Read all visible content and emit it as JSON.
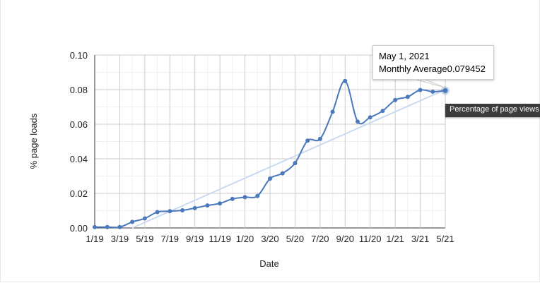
{
  "chart_data": {
    "type": "line",
    "title": "",
    "xlabel": "Date",
    "ylabel": "% page loads",
    "ylim": [
      0,
      0.1
    ],
    "y_ticks": [
      "0.00",
      "0.02",
      "0.04",
      "0.06",
      "0.08",
      "0.10"
    ],
    "x_ticks": [
      "1/19",
      "3/19",
      "5/19",
      "7/19",
      "9/19",
      "11/19",
      "1/20",
      "3/20",
      "5/20",
      "7/20",
      "9/20",
      "11/20",
      "1/21",
      "3/21",
      "5/21"
    ],
    "grid": true,
    "series": [
      {
        "values": [
          [
            "2019-01",
            0.0005
          ],
          [
            "2019-02",
            0.0005
          ],
          [
            "2019-03",
            0.0005
          ],
          [
            "2019-04",
            0.0035
          ],
          [
            "2019-05",
            0.0055
          ],
          [
            "2019-06",
            0.0092
          ],
          [
            "2019-07",
            0.0097
          ],
          [
            "2019-08",
            0.0102
          ],
          [
            "2019-09",
            0.0115
          ],
          [
            "2019-10",
            0.013
          ],
          [
            "2019-11",
            0.0142
          ],
          [
            "2019-12",
            0.0168
          ],
          [
            "2020-01",
            0.0178
          ],
          [
            "2020-02",
            0.0185
          ],
          [
            "2020-03",
            0.0285
          ],
          [
            "2020-04",
            0.0316
          ],
          [
            "2020-05",
            0.0375
          ],
          [
            "2020-06",
            0.0505
          ],
          [
            "2020-07",
            0.0515
          ],
          [
            "2020-08",
            0.0672
          ],
          [
            "2020-09",
            0.085
          ],
          [
            "2020-10",
            0.0615
          ],
          [
            "2020-11",
            0.064
          ],
          [
            "2020-12",
            0.0677
          ],
          [
            "2021-01",
            0.074
          ],
          [
            "2021-02",
            0.0758
          ],
          [
            "2021-03",
            0.0798
          ],
          [
            "2021-04",
            0.0788
          ],
          [
            "2021-05",
            0.079452
          ]
        ],
        "color": "#4a78bc"
      }
    ],
    "trendline": {
      "from": [
        "2019-04",
        0.0
      ],
      "to": [
        "2021-05",
        0.08
      ],
      "color": "#c9daf0"
    },
    "tooltip": {
      "date": "May 1, 2021",
      "label": "Monthly Average",
      "value": "0.079452"
    },
    "hovercard": "Percentage of page views"
  }
}
